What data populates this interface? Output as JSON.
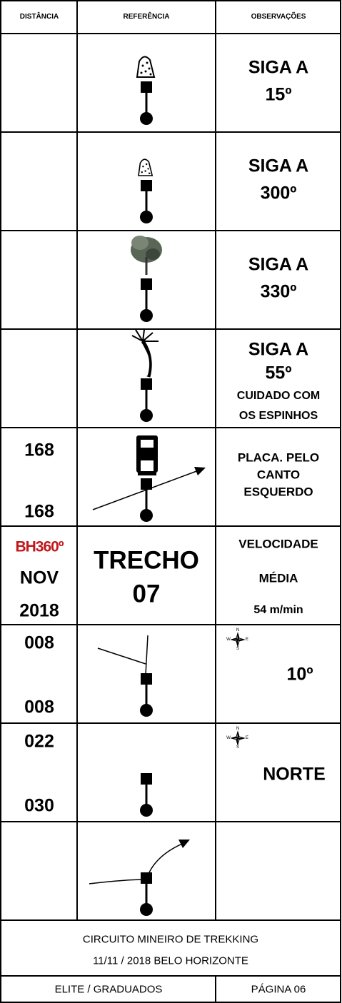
{
  "header": {
    "distance": "DISTÂNCIA",
    "reference": "REFERÊNCIA",
    "observations": "OBSERVAÇÕES"
  },
  "rows": [
    {
      "observations": [
        "SIGA A",
        "15º"
      ]
    },
    {
      "observations": [
        "SIGA A",
        "300º"
      ]
    },
    {
      "observations": [
        "SIGA A",
        "330º"
      ]
    },
    {
      "observations": [
        "SIGA A",
        "55º",
        "CUIDADO COM",
        "OS ESPINHOS"
      ]
    },
    {
      "distance": [
        "168",
        "168"
      ],
      "observations": [
        "PLACA. PELO",
        "CANTO",
        "ESQUERDO"
      ]
    },
    {
      "distance": [
        "BH360º",
        "NOV",
        "2018"
      ],
      "reference": [
        "TRECHO",
        "07"
      ],
      "observations": [
        "VELOCIDADE",
        "MÉDIA",
        "54 m/min"
      ]
    },
    {
      "distance": [
        "008",
        "008"
      ],
      "compass": [
        "N",
        "W",
        "E",
        "S"
      ],
      "observations": [
        "10º"
      ]
    },
    {
      "distance": [
        "022",
        "030"
      ],
      "compass": [
        "N",
        "W",
        "E",
        "S"
      ],
      "observations": [
        "NORTE"
      ]
    }
  ],
  "footer": {
    "lines": [
      "CIRCUITO MINEIRO DE TREKKING",
      "11/11 / 2018  BELO HORIZONTE"
    ],
    "category": "ELITE / GRADUADOS",
    "page": "PÁGINA 06"
  }
}
